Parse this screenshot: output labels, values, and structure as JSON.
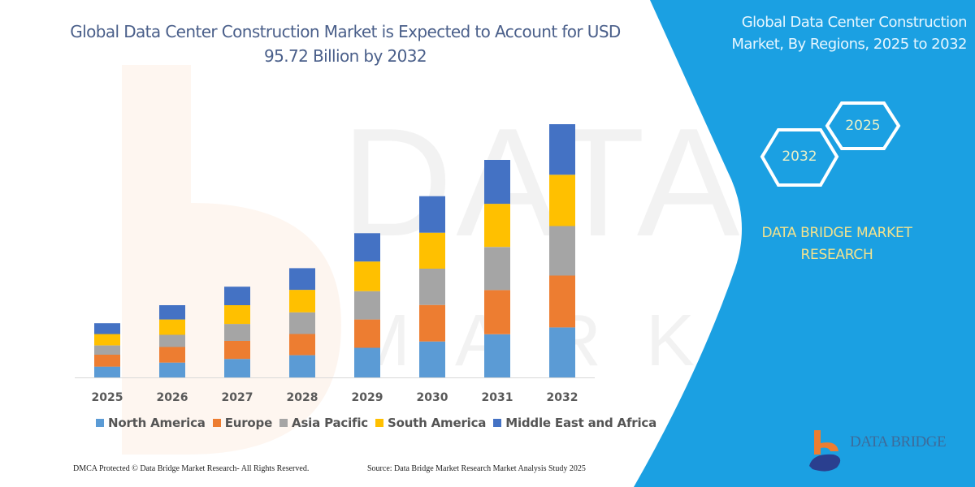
{
  "header": {
    "title": "Global Data Center Construction Market is Expected to Account for USD 95.72 Billion by 2032"
  },
  "side_panel": {
    "title": "Global Data Center Construction Market, By Regions, 2025 to 2032",
    "hex_labels": [
      "2025",
      "2032"
    ],
    "brand_text": "DATA BRIDGE MARKET RESEARCH",
    "logo_text": "DATA BRIDGE",
    "background_color": "#1ba0e2"
  },
  "footer": {
    "left": "DMCA Protected © Data Bridge Market Research-  All Rights Reserved.",
    "right": "Source: Data Bridge Market Research  Market Analysis Study 2025"
  },
  "watermark": "DATA BRIDGE MARKET RESEARCH",
  "chart_data": {
    "type": "bar",
    "stacked": true,
    "title": "Global Data Center Construction Market is Expected to Account for USD 95.72 Billion by 2032",
    "xlabel": "",
    "ylabel": "",
    "y_axis_visible": false,
    "grid": false,
    "legend_position": "bottom",
    "categories": [
      "2025",
      "2026",
      "2027",
      "2028",
      "2029",
      "2030",
      "2031",
      "2032"
    ],
    "series": [
      {
        "name": "North America",
        "color": "#5b9bd5",
        "values": [
          4.1,
          5.6,
          7.0,
          8.4,
          11.2,
          13.6,
          16.3,
          18.9
        ]
      },
      {
        "name": "Europe",
        "color": "#ed7d31",
        "values": [
          4.5,
          5.9,
          6.8,
          8.0,
          10.7,
          13.8,
          16.7,
          19.6
        ]
      },
      {
        "name": "Asia Pacific",
        "color": "#a5a5a5",
        "values": [
          3.5,
          4.6,
          6.4,
          8.2,
          10.7,
          13.7,
          16.3,
          18.7
        ]
      },
      {
        "name": "South America",
        "color": "#ffc000",
        "values": [
          4.3,
          5.8,
          7.1,
          8.5,
          11.2,
          13.6,
          16.3,
          19.4
        ]
      },
      {
        "name": "Middle East and Africa",
        "color": "#4472c4",
        "values": [
          4.1,
          5.4,
          7.0,
          8.2,
          10.7,
          13.8,
          16.6,
          19.1
        ]
      }
    ]
  }
}
